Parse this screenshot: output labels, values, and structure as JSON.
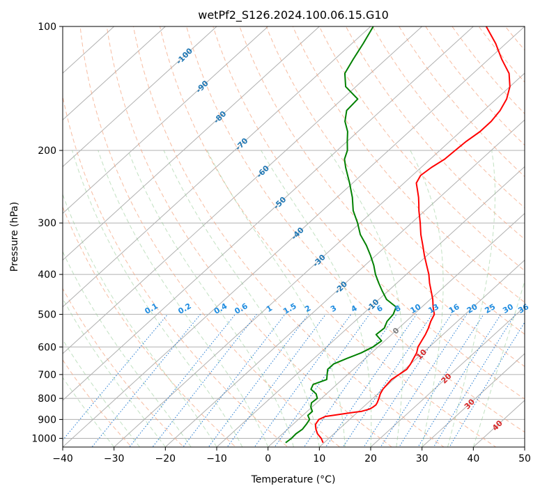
{
  "chart_data": {
    "type": "line",
    "diagram": "skew-T log-P",
    "title": "wetPf2_S126.2024.100.06.15.G10",
    "xlabel": "Temperature (°C)",
    "ylabel": "Pressure (hPa)",
    "xlim": [
      -40,
      50
    ],
    "ylim": [
      1050,
      100
    ],
    "y_scale": "log",
    "grid": true,
    "x_ticks": [
      -40,
      -30,
      -20,
      -10,
      0,
      10,
      20,
      30,
      40,
      50
    ],
    "y_ticks": [
      1000,
      900,
      800,
      700,
      600,
      500,
      400,
      300,
      200,
      100
    ],
    "isotherm_labels": [
      {
        "text": "-100",
        "t": -100,
        "p": 118
      },
      {
        "text": "-90",
        "t": -90,
        "p": 140
      },
      {
        "text": "-80",
        "t": -80,
        "p": 166
      },
      {
        "text": "-70",
        "t": -70,
        "p": 193
      },
      {
        "text": "-60",
        "t": -60,
        "p": 225
      },
      {
        "text": "-50",
        "t": -50,
        "p": 268
      },
      {
        "text": "-40",
        "t": -40,
        "p": 318
      },
      {
        "text": "-30",
        "t": -30,
        "p": 370
      },
      {
        "text": "-20",
        "t": -20,
        "p": 430
      },
      {
        "text": "-10",
        "t": -10,
        "p": 475
      },
      {
        "text": "0",
        "t": 0,
        "p": 548
      },
      {
        "text": "10",
        "t": 10,
        "p": 625
      },
      {
        "text": "20",
        "t": 20,
        "p": 715
      },
      {
        "text": "30",
        "t": 30,
        "p": 825
      },
      {
        "text": "40",
        "t": 40,
        "p": 930
      }
    ],
    "mixing_ratio_labels": [
      "0.1",
      "0.2",
      "0.4",
      "0.6",
      "1",
      "1.5",
      "2",
      "3",
      "4",
      "6",
      "8",
      "10",
      "13",
      "16",
      "20",
      "25",
      "30",
      "36"
    ],
    "mixing_ratio_label_x": [
      -22.5,
      -16,
      -9,
      -5,
      0.5,
      4.5,
      8,
      13,
      17,
      22,
      25.5,
      29,
      32.5,
      36.5,
      40,
      43.5,
      47,
      50
    ],
    "series": [
      {
        "name": "temperature",
        "color": "#ff0000",
        "p": [
          1025,
          1000,
          975,
          950,
          925,
          900,
          885,
          870,
          860,
          850,
          840,
          830,
          820,
          800,
          780,
          760,
          740,
          720,
          700,
          680,
          660,
          640,
          620,
          600,
          580,
          560,
          540,
          520,
          500,
          480,
          460,
          440,
          420,
          400,
          380,
          360,
          340,
          320,
          300,
          280,
          270,
          260,
          250,
          240,
          230,
          220,
          210,
          200,
          190,
          180,
          170,
          160,
          150,
          140,
          130,
          120,
          110,
          100
        ],
        "t": [
          9.8,
          8.5,
          6.8,
          5.5,
          4.4,
          4.0,
          4.6,
          8.0,
          10.6,
          11.6,
          11.9,
          12.0,
          11.8,
          11.2,
          10.5,
          10.0,
          9.8,
          9.6,
          10.0,
          10.4,
          10.0,
          9.4,
          8.8,
          7.8,
          7.2,
          6.6,
          5.8,
          4.8,
          4.0,
          2.2,
          0.5,
          -1.5,
          -3.6,
          -5.6,
          -8.0,
          -10.5,
          -13.0,
          -15.7,
          -18.3,
          -21.2,
          -22.6,
          -24.1,
          -25.8,
          -27.6,
          -28.4,
          -28.0,
          -27.2,
          -27.0,
          -26.8,
          -26.2,
          -26.2,
          -26.8,
          -28.0,
          -30.0,
          -33.0,
          -37.5,
          -42.0,
          -47.5
        ]
      },
      {
        "name": "dewpoint",
        "color": "#008000",
        "p": [
          1025,
          1000,
          975,
          950,
          925,
          900,
          880,
          860,
          840,
          820,
          800,
          780,
          760,
          740,
          720,
          700,
          680,
          660,
          640,
          620,
          600,
          580,
          560,
          540,
          520,
          500,
          480,
          460,
          440,
          420,
          400,
          380,
          360,
          340,
          320,
          300,
          280,
          260,
          240,
          220,
          210,
          200,
          190,
          180,
          170,
          160,
          150,
          140,
          130,
          120,
          110,
          100
        ],
        "t": [
          2.5,
          2.7,
          2.6,
          2.9,
          2.6,
          2.2,
          1.0,
          1.0,
          -0.2,
          -1.0,
          -0.8,
          -2.0,
          -4.0,
          -4.6,
          -3.0,
          -4.0,
          -5.0,
          -5.0,
          -3.6,
          -2.0,
          -1.0,
          -0.6,
          -3.0,
          -2.8,
          -3.7,
          -4.0,
          -5.0,
          -8.5,
          -11.0,
          -13.5,
          -16.0,
          -18.3,
          -21.0,
          -24.0,
          -27.5,
          -30.5,
          -34.0,
          -37.0,
          -40.6,
          -44.7,
          -46.7,
          -48.0,
          -50.0,
          -52.0,
          -54.7,
          -56.7,
          -57.0,
          -62.0,
          -65.0,
          -66.4,
          -67.8,
          -69.5
        ]
      }
    ]
  }
}
